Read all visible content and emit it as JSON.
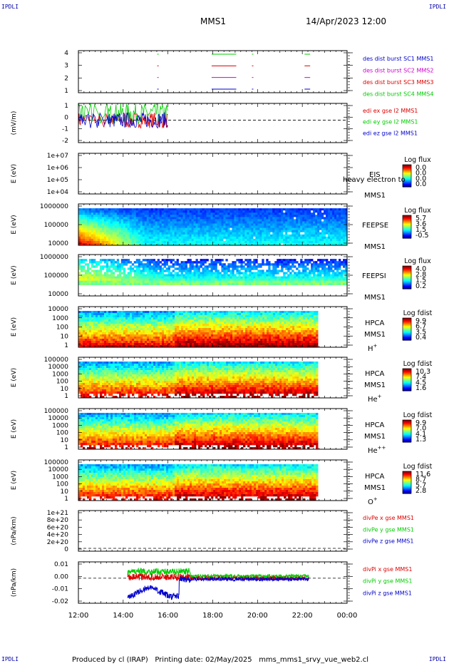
{
  "corner_tag": "IPDLI",
  "header": {
    "spacecraft": "MMS1",
    "datetime": "14/Apr/2023 12:00"
  },
  "footer": {
    "text": "Produced by cl (IRAP)   Printing date: 02/May/2025   mms_mms1_srvy_vue_web2.cl"
  },
  "chart_data": {
    "type": "multi-panel time series / spectrograms",
    "x_axis": {
      "ticks": [
        "12:00",
        "14:00",
        "16:00",
        "18:00",
        "20:00",
        "22:00",
        "00:00"
      ],
      "range_hours": [
        12,
        24
      ]
    },
    "panels": [
      {
        "id": "burst",
        "type": "line",
        "ylabel": "",
        "yticks": [
          "4",
          "3",
          "2",
          "1"
        ],
        "ylim": [
          0.5,
          4.5
        ],
        "legend": [
          {
            "label": "des dist burst SC1 MMS1",
            "color": "#0000cc"
          },
          {
            "label": "des dist burst SC2 MMS2",
            "color": "#cc00cc"
          },
          {
            "label": "des dist burst SC3 MMS3",
            "color": "#dd0000"
          },
          {
            "label": "des dist burst SC4 MMS4",
            "color": "#00cc00"
          }
        ],
        "intervals_hours": [
          [
            15.52,
            15.56
          ],
          [
            17.95,
            19.05
          ],
          [
            19.75,
            19.79
          ],
          [
            22.1,
            22.35
          ]
        ]
      },
      {
        "id": "edi",
        "type": "line",
        "ylabel": "(mV/m)",
        "yticks": [
          "1",
          "0",
          "-1",
          "-2"
        ],
        "ylim": [
          -2,
          1.5
        ],
        "dashed_zero": true,
        "legend": [
          {
            "label": "edi ex gse l2 MMS1",
            "color": "#dd0000"
          },
          {
            "label": "edi ey gse l2 MMS1",
            "color": "#00cc00"
          },
          {
            "label": "edi ez gse l2 MMS1",
            "color": "#0000cc"
          }
        ],
        "active_range_hours": [
          12.0,
          16.0
        ]
      },
      {
        "id": "eis",
        "type": "heatmap",
        "ylabel": "E (eV)",
        "yticks": [
          "1e+07",
          "1e+06",
          "1e+05",
          "1e+04"
        ],
        "instrument": [
          "EIS",
          "MMS1"
        ],
        "overlay_text": "heavy electron to",
        "colorbar": {
          "title": "Log flux",
          "ticks": [
            "0.0",
            "0.0",
            "0.0",
            "0.0"
          ]
        },
        "empty": true
      },
      {
        "id": "feepse",
        "type": "heatmap",
        "ylabel": "E (eV)",
        "yticks": [
          "1000000",
          "100000",
          "10000"
        ],
        "instrument": [
          "FEEPSE",
          "MMS1"
        ],
        "colorbar": {
          "title": "Log flux",
          "ticks": [
            "5.7",
            "3.6",
            "1.5",
            "-0.5"
          ]
        },
        "data_range_hours": [
          12,
          24
        ]
      },
      {
        "id": "feepsi",
        "type": "heatmap",
        "ylabel": "E (eV)",
        "yticks": [
          "1000000",
          "100000",
          "10000"
        ],
        "instrument": [
          "FEEPSI",
          "MMS1"
        ],
        "colorbar": {
          "title": "Log flux",
          "ticks": [
            "4.0",
            "2.8",
            "1.5",
            "0.2"
          ]
        },
        "data_range_hours": [
          12,
          24
        ]
      },
      {
        "id": "hpca_h",
        "type": "heatmap",
        "ylabel": "E (eV)",
        "yticks": [
          "10000",
          "1000",
          "100",
          "10",
          "1"
        ],
        "instrument": [
          "HPCA",
          "MMS1"
        ],
        "species": "H",
        "species_sup": "+",
        "colorbar": {
          "title": "Log fdist",
          "ticks": [
            "9.9",
            "6.7",
            "3.5",
            "0.4"
          ]
        },
        "data_range_hours": [
          12,
          22.7
        ]
      },
      {
        "id": "hpca_he1",
        "type": "heatmap",
        "ylabel": "E (eV)",
        "yticks": [
          "100000",
          "10000",
          "1000",
          "100",
          "10",
          "1"
        ],
        "instrument": [
          "HPCA",
          "MMS1"
        ],
        "species": "He",
        "species_sup": "+",
        "colorbar": {
          "title": "Log fdist",
          "ticks": [
            "10.3",
            "7.4",
            "4.5",
            "1.6"
          ]
        },
        "data_range_hours": [
          12,
          22.7
        ]
      },
      {
        "id": "hpca_he2",
        "type": "heatmap",
        "ylabel": "E (eV)",
        "yticks": [
          "100000",
          "10000",
          "1000",
          "100",
          "10",
          "1"
        ],
        "instrument": [
          "HPCA",
          "MMS1"
        ],
        "species": "He",
        "species_sup": "++",
        "colorbar": {
          "title": "Log fdist",
          "ticks": [
            "9.9",
            "7.0",
            "4.1",
            "1.3"
          ]
        },
        "data_range_hours": [
          12,
          22.7
        ]
      },
      {
        "id": "hpca_o",
        "type": "heatmap",
        "ylabel": "E (eV)",
        "yticks": [
          "100000",
          "10000",
          "1000",
          "100",
          "10",
          "1"
        ],
        "instrument": [
          "HPCA",
          "MMS1"
        ],
        "species": "O",
        "species_sup": "+",
        "colorbar": {
          "title": "Log fdist",
          "ticks": [
            "11.6",
            "8.7",
            "5.7",
            "2.8"
          ]
        },
        "data_range_hours": [
          12,
          22.7
        ]
      },
      {
        "id": "divpe",
        "type": "line",
        "ylabel": "(nPa/km)",
        "yticks": [
          "1e+21",
          "8e+20",
          "6e+20",
          "4e+20",
          "2e+20",
          "0"
        ],
        "ylim": [
          -1e+20,
          1.1e+21
        ],
        "dashed_zero": true,
        "legend": [
          {
            "label": "divPe x gse MMS1",
            "color": "#dd0000"
          },
          {
            "label": "divPe y gse MMS1",
            "color": "#00cc00"
          },
          {
            "label": "divPe z gse MMS1",
            "color": "#0000cc"
          }
        ],
        "empty": true
      },
      {
        "id": "divpi",
        "type": "line",
        "ylabel": "(nPa/km)",
        "yticks": [
          "0.01",
          "0.00",
          "-0.01",
          "-0.02"
        ],
        "ylim": [
          -0.023,
          0.015
        ],
        "dashed_zero": true,
        "legend": [
          {
            "label": "divPi x gse MMS1",
            "color": "#dd0000"
          },
          {
            "label": "divPi y gse MMS1",
            "color": "#00cc00"
          },
          {
            "label": "divPi z gse MMS1",
            "color": "#0000cc"
          }
        ],
        "active_range_hours": [
          14.2,
          22.3
        ]
      }
    ]
  }
}
